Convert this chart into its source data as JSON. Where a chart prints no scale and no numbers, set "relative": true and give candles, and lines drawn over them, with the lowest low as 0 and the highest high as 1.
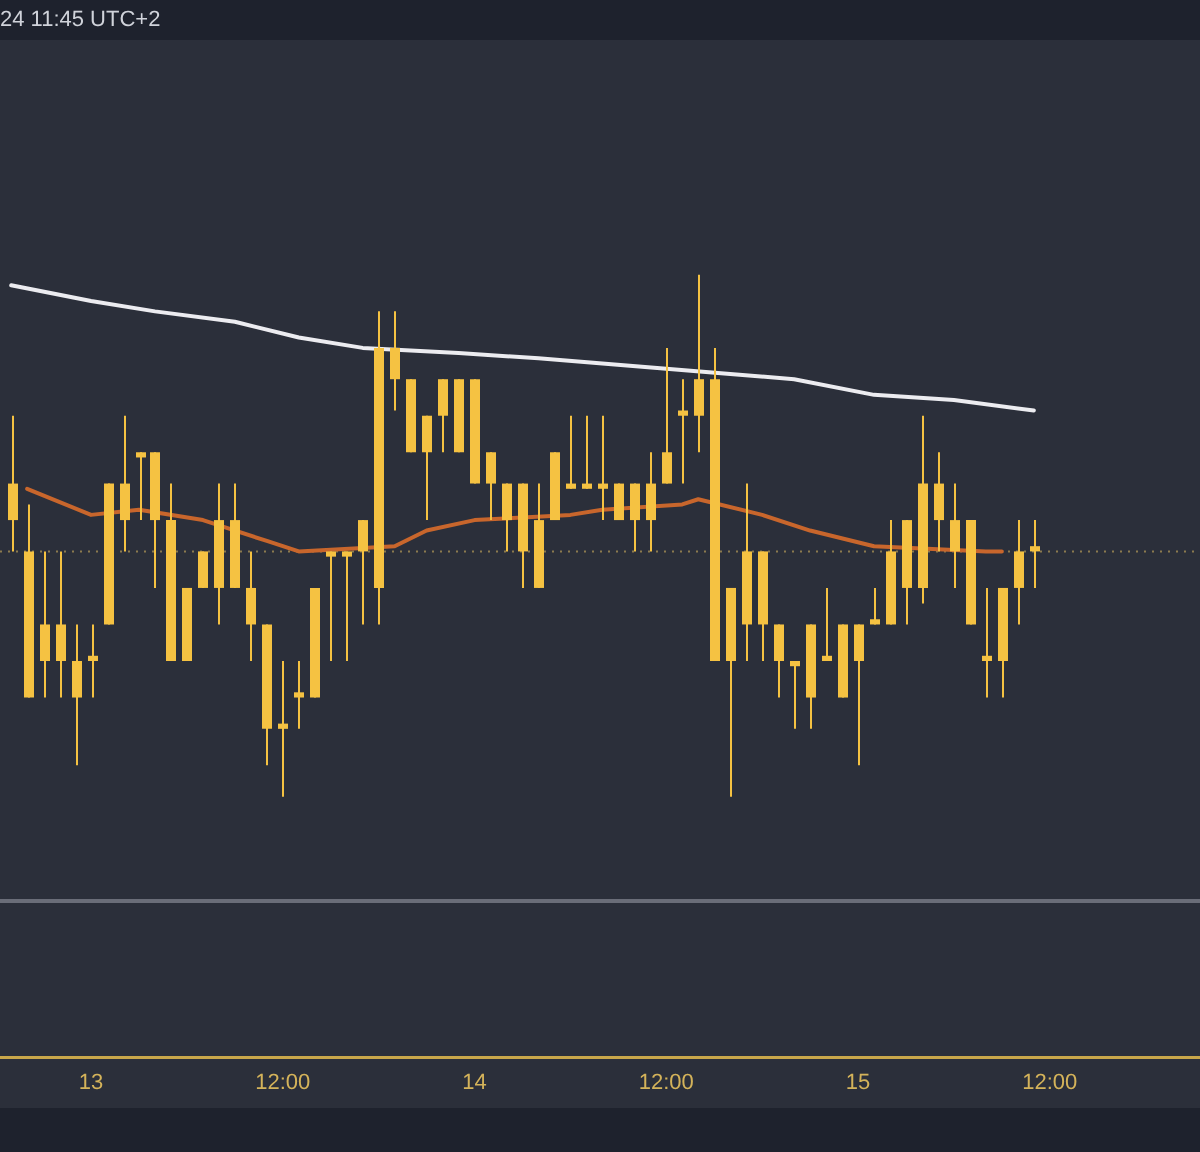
{
  "chart_data": {
    "type": "candlestick",
    "relative": true,
    "annotations": [
      "24 11:45 UTC+2"
    ],
    "color": "#f5c242",
    "categories": [
      null,
      null,
      null,
      null,
      null,
      "13",
      null,
      null,
      null,
      null,
      null,
      null,
      null,
      null,
      null,
      null,
      null,
      "12:00",
      null,
      null,
      null,
      null,
      null,
      null,
      null,
      null,
      null,
      null,
      null,
      "14",
      null,
      null,
      null,
      null,
      null,
      null,
      null,
      null,
      null,
      null,
      null,
      "12:00",
      null,
      null,
      null,
      null,
      null,
      null,
      null,
      null,
      null,
      null,
      null,
      "15",
      null,
      null,
      null,
      null,
      null,
      null,
      null,
      null,
      null,
      null,
      null,
      "12:00",
      null,
      null,
      null,
      null,
      null,
      null,
      null,
      null,
      null
    ],
    "ohlc": [
      [
        0.53,
        0.73,
        0.47,
        0.6
      ],
      [
        0.19,
        0.56,
        0.19,
        0.47
      ],
      [
        0.26,
        0.47,
        0.19,
        0.33
      ],
      [
        0.26,
        0.47,
        0.19,
        0.33
      ],
      [
        0.19,
        0.33,
        0.06,
        0.26
      ],
      [
        0.26,
        0.33,
        0.19,
        0.27
      ],
      [
        0.33,
        0.6,
        0.33,
        0.6
      ],
      [
        0.53,
        0.73,
        0.47,
        0.6
      ],
      [
        0.65,
        0.66,
        0.53,
        0.66
      ],
      [
        0.53,
        0.66,
        0.4,
        0.66
      ],
      [
        0.26,
        0.6,
        0.26,
        0.53
      ],
      [
        0.26,
        0.4,
        0.26,
        0.4
      ],
      [
        0.4,
        0.47,
        0.4,
        0.47
      ],
      [
        0.4,
        0.6,
        0.33,
        0.53
      ],
      [
        0.4,
        0.6,
        0.4,
        0.53
      ],
      [
        0.33,
        0.47,
        0.26,
        0.4
      ],
      [
        0.13,
        0.33,
        0.06,
        0.33
      ],
      [
        0.13,
        0.26,
        0,
        0.14
      ],
      [
        0.19,
        0.26,
        0.13,
        0.2
      ],
      [
        0.19,
        0.4,
        0.19,
        0.4
      ],
      [
        0.46,
        0.47,
        0.26,
        0.47
      ],
      [
        0.46,
        0.47,
        0.26,
        0.47
      ],
      [
        0.47,
        0.53,
        0.33,
        0.53
      ],
      [
        0.4,
        0.93,
        0.33,
        0.86
      ],
      [
        0.8,
        0.93,
        0.74,
        0.86
      ],
      [
        0.66,
        0.8,
        0.66,
        0.8
      ],
      [
        0.66,
        0.73,
        0.53,
        0.73
      ],
      [
        0.73,
        0.8,
        0.66,
        0.8
      ],
      [
        0.66,
        0.8,
        0.66,
        0.8
      ],
      [
        0.6,
        0.8,
        0.6,
        0.8
      ],
      [
        0.6,
        0.66,
        0.53,
        0.66
      ],
      [
        0.53,
        0.6,
        0.47,
        0.6
      ],
      [
        0.47,
        0.6,
        0.4,
        0.6
      ],
      [
        0.4,
        0.6,
        0.4,
        0.53
      ],
      [
        0.53,
        0.66,
        0.53,
        0.66
      ],
      [
        0.59,
        0.73,
        0.59,
        0.6
      ],
      [
        0.59,
        0.73,
        0.59,
        0.6
      ],
      [
        0.59,
        0.73,
        0.53,
        0.6
      ],
      [
        0.53,
        0.6,
        0.53,
        0.6
      ],
      [
        0.53,
        0.6,
        0.47,
        0.6
      ],
      [
        0.53,
        0.66,
        0.47,
        0.6
      ],
      [
        0.6,
        0.86,
        0.6,
        0.66
      ],
      [
        0.73,
        0.8,
        0.6,
        0.74
      ],
      [
        0.73,
        1,
        0.66,
        0.8
      ],
      [
        0.26,
        0.86,
        0.26,
        0.8
      ],
      [
        0.26,
        0.4,
        0,
        0.4
      ],
      [
        0.33,
        0.6,
        0.26,
        0.47
      ],
      [
        0.33,
        0.47,
        0.26,
        0.47
      ],
      [
        0.26,
        0.33,
        0.19,
        0.33
      ],
      [
        0.25,
        0.26,
        0.13,
        0.26
      ],
      [
        0.19,
        0.33,
        0.13,
        0.33
      ],
      [
        0.26,
        0.4,
        0.26,
        0.27
      ],
      [
        0.19,
        0.33,
        0.19,
        0.33
      ],
      [
        0.26,
        0.33,
        0.06,
        0.33
      ],
      [
        0.33,
        0.4,
        0.33,
        0.34
      ],
      [
        0.33,
        0.53,
        0.33,
        0.47
      ],
      [
        0.4,
        0.53,
        0.33,
        0.53
      ],
      [
        0.4,
        0.73,
        0.37,
        0.6
      ],
      [
        0.53,
        0.66,
        0.47,
        0.6
      ],
      [
        0.47,
        0.6,
        0.4,
        0.53
      ],
      [
        0.33,
        0.53,
        0.33,
        0.53
      ],
      [
        0.26,
        0.4,
        0.19,
        0.27
      ],
      [
        0.26,
        0.4,
        0.19,
        0.4
      ],
      [
        0.4,
        0.53,
        0.33,
        0.47
      ],
      [
        0.47,
        0.53,
        0.4,
        0.48
      ],
      null,
      null,
      null,
      null,
      null,
      null,
      null,
      null,
      null,
      null
    ],
    "series": [
      {
        "type": "line",
        "color": "#ececf0",
        "values": [
          0.98,
          null,
          null,
          null,
          null,
          0.95,
          null,
          null,
          null,
          0.93,
          null,
          null,
          null,
          null,
          0.91,
          null,
          null,
          null,
          0.88,
          null,
          null,
          null,
          0.86,
          null,
          null,
          null,
          null,
          null,
          0.85,
          null,
          null,
          null,
          null,
          0.84,
          null,
          null,
          null,
          null,
          null,
          null,
          null,
          0.82,
          null,
          null,
          null,
          0.81,
          null,
          null,
          null,
          0.8,
          null,
          null,
          null,
          null,
          0.77,
          null,
          null,
          null,
          null,
          0.76,
          null,
          null,
          null,
          null,
          0.74,
          null,
          null,
          null,
          null,
          null,
          null,
          null,
          null,
          null,
          null
        ]
      },
      {
        "type": "line",
        "color": "#c8662c",
        "values": [
          null,
          0.59,
          null,
          null,
          null,
          0.54,
          null,
          null,
          0.55,
          null,
          null,
          null,
          0.53,
          null,
          null,
          null,
          0.49,
          null,
          0.47,
          null,
          null,
          null,
          null,
          null,
          0.48,
          null,
          0.51,
          null,
          null,
          0.53,
          null,
          null,
          null,
          null,
          null,
          0.54,
          null,
          0.55,
          null,
          null,
          null,
          null,
          0.56,
          0.57,
          null,
          null,
          null,
          0.54,
          null,
          null,
          0.51,
          null,
          null,
          null,
          0.48,
          null,
          null,
          null,
          null,
          null,
          null,
          0.47,
          0.47,
          null,
          null,
          null,
          null,
          null,
          null,
          null,
          null,
          null,
          null,
          null,
          null
        ]
      }
    ],
    "ref_lines": [
      {
        "axis": "y",
        "value": 0.47,
        "color": "#8c7b4e",
        "line_style": "dotted"
      },
      {
        "axis": "y",
        "value": -0.2,
        "color": "#6a6d78",
        "line_style": "solid"
      }
    ]
  }
}
